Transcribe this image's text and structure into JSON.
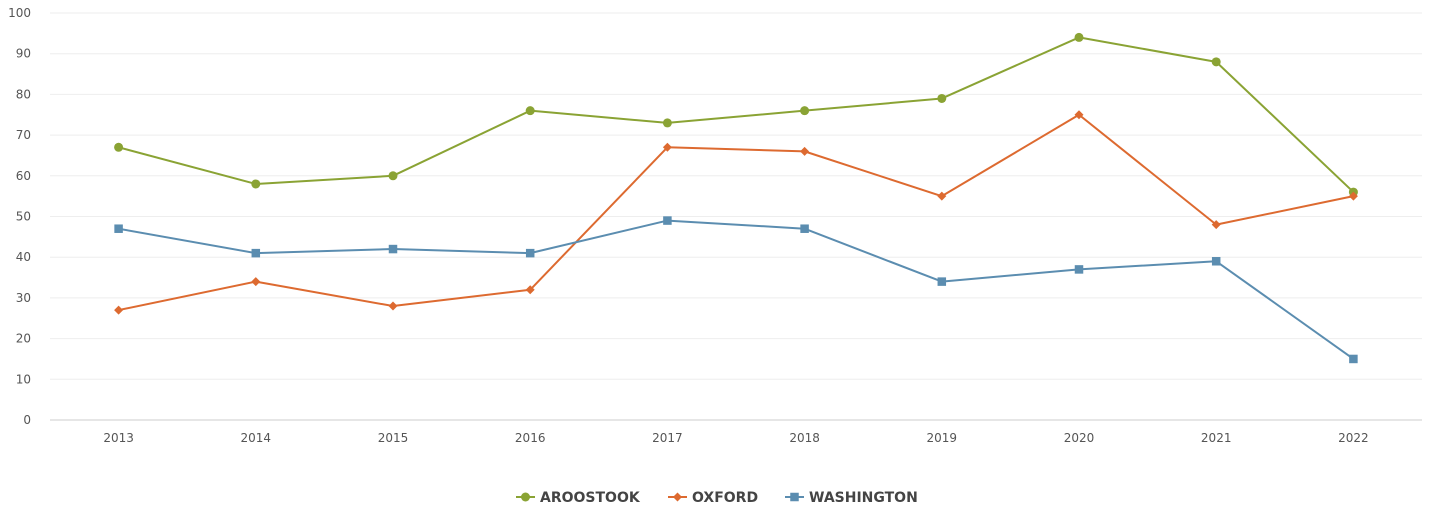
{
  "chart_data": {
    "type": "line",
    "title": "",
    "xlabel": "",
    "ylabel": "",
    "ylim": [
      0,
      100
    ],
    "yticks": [
      0,
      10,
      20,
      30,
      40,
      50,
      60,
      70,
      80,
      90,
      100
    ],
    "categories": [
      "2013",
      "2014",
      "2015",
      "2016",
      "2017",
      "2018",
      "2019",
      "2020",
      "2021",
      "2022"
    ],
    "grid": true,
    "legend_position": "bottom-center",
    "series": [
      {
        "name": "AROOSTOOK",
        "color": "#8aa334",
        "marker": "circle",
        "values": [
          67,
          58,
          60,
          76,
          73,
          76,
          79,
          94,
          88,
          56
        ]
      },
      {
        "name": "OXFORD",
        "color": "#dd6a30",
        "marker": "diamond",
        "values": [
          27,
          34,
          28,
          32,
          67,
          66,
          55,
          75,
          48,
          55
        ]
      },
      {
        "name": "WASHINGTON",
        "color": "#5b8db0",
        "marker": "square",
        "values": [
          47,
          41,
          42,
          41,
          49,
          47,
          34,
          37,
          39,
          15
        ]
      }
    ]
  }
}
